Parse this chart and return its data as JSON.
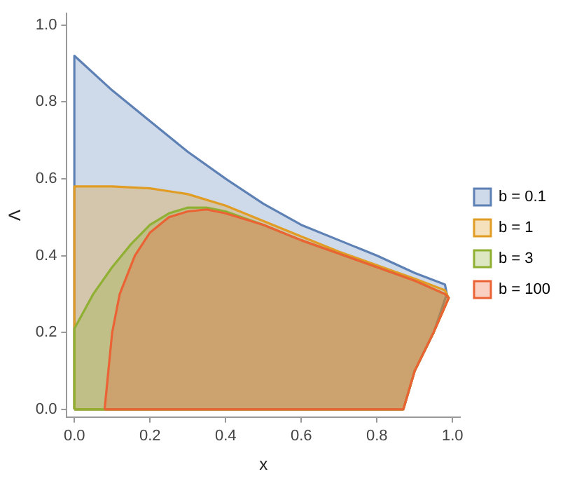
{
  "chart_data": {
    "type": "area",
    "xlabel": "x",
    "ylabel": "Λ",
    "xlim": [
      -0.02,
      1.02
    ],
    "ylim": [
      -0.02,
      1.03
    ],
    "xticks": [
      {
        "value": 0,
        "label": "0.0"
      },
      0.2,
      0.4,
      0.6,
      0.8,
      {
        "value": 1,
        "label": "1.0"
      }
    ],
    "yticks": [
      {
        "value": 0,
        "label": "0.0"
      },
      0.2,
      0.4,
      0.6,
      0.8,
      {
        "value": 1,
        "label": "1.0"
      }
    ],
    "grid": false,
    "legend": "right",
    "marker": "none",
    "series": [
      {
        "name": "b = 0.1",
        "color": "#5e81b5",
        "x": [
          0,
          0,
          0.1,
          0.2,
          0.3,
          0.4,
          0.5,
          0.6,
          0.7,
          0.8,
          0.9,
          0.98,
          0.985,
          0.95,
          0.9,
          0.87,
          0
        ],
        "values": [
          0,
          0.92,
          0.83,
          0.75,
          0.67,
          0.6,
          0.535,
          0.48,
          0.44,
          0.4,
          0.355,
          0.325,
          0.3,
          0.2,
          0.1,
          0,
          0
        ]
      },
      {
        "name": "b = 1",
        "color": "#e19c24",
        "x": [
          0,
          0,
          0.1,
          0.2,
          0.3,
          0.4,
          0.5,
          0.6,
          0.7,
          0.8,
          0.9,
          0.98,
          0.99,
          0.95,
          0.9,
          0.87,
          0
        ],
        "values": [
          0,
          0.58,
          0.58,
          0.575,
          0.56,
          0.53,
          0.49,
          0.45,
          0.41,
          0.375,
          0.34,
          0.31,
          0.29,
          0.2,
          0.1,
          0,
          0
        ]
      },
      {
        "name": "b = 3",
        "color": "#8fb032",
        "x": [
          0,
          0,
          0.05,
          0.1,
          0.15,
          0.2,
          0.25,
          0.3,
          0.35,
          0.4,
          0.5,
          0.6,
          0.7,
          0.8,
          0.9,
          0.98,
          0.99,
          0.95,
          0.9,
          0.87,
          0
        ],
        "values": [
          0,
          0.21,
          0.3,
          0.37,
          0.43,
          0.48,
          0.51,
          0.525,
          0.525,
          0.515,
          0.48,
          0.44,
          0.405,
          0.37,
          0.335,
          0.3,
          0.29,
          0.2,
          0.1,
          0,
          0
        ]
      },
      {
        "name": "b = 100",
        "color": "#eb6235",
        "x": [
          0.08,
          0.09,
          0.1,
          0.12,
          0.16,
          0.2,
          0.25,
          0.3,
          0.35,
          0.4,
          0.5,
          0.6,
          0.7,
          0.8,
          0.9,
          0.98,
          0.99,
          0.95,
          0.9,
          0.87,
          0.08
        ],
        "values": [
          0,
          0.1,
          0.2,
          0.3,
          0.4,
          0.46,
          0.5,
          0.515,
          0.52,
          0.51,
          0.48,
          0.44,
          0.405,
          0.37,
          0.335,
          0.3,
          0.29,
          0.2,
          0.1,
          0,
          0
        ]
      }
    ]
  }
}
